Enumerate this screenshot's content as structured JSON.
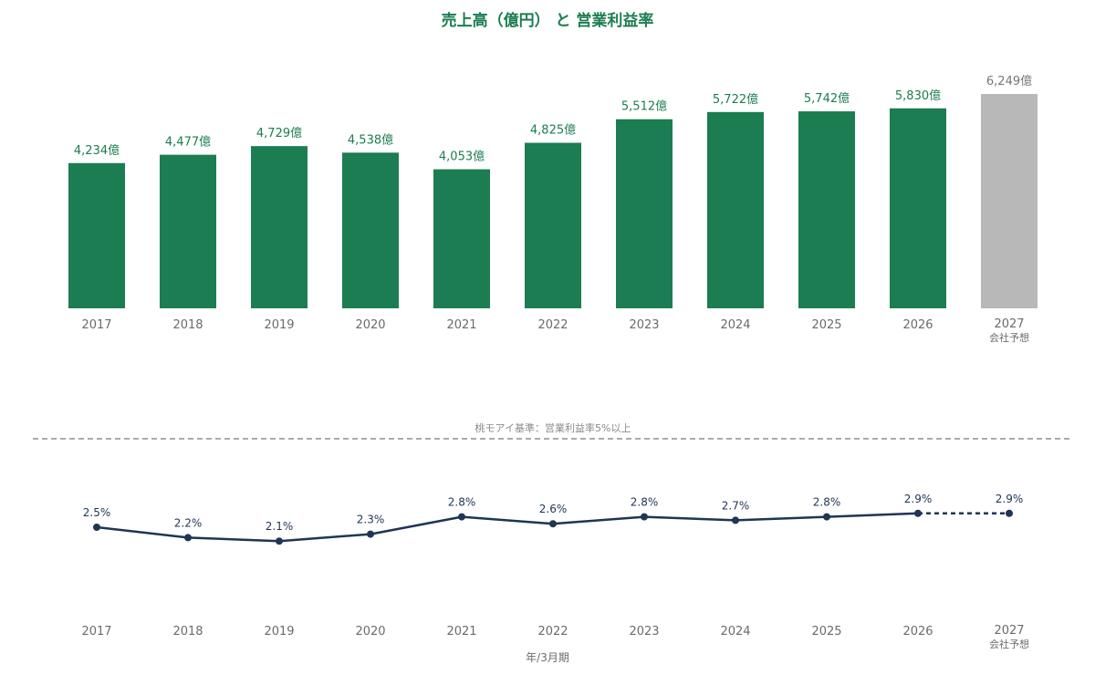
{
  "chart_data": [
    {
      "type": "bar",
      "title": "売上高（億円） と 営業利益率",
      "categories": [
        "2017",
        "2018",
        "2019",
        "2020",
        "2021",
        "2022",
        "2023",
        "2024",
        "2025",
        "2026",
        "2027"
      ],
      "category_sublabels": [
        "",
        "",
        "",
        "",
        "",
        "",
        "",
        "",
        "",
        "",
        "会社予想"
      ],
      "values": [
        4234,
        4477,
        4729,
        4538,
        4053,
        4825,
        5512,
        5722,
        5742,
        5830,
        6249
      ],
      "value_labels": [
        "4,234億",
        "4,477億",
        "4,729億",
        "4,538億",
        "4,053億",
        "4,825億",
        "5,512億",
        "5,722億",
        "5,742億",
        "5,830億",
        "6,249億"
      ],
      "forecast_index": 10,
      "colors": {
        "actual": "#1b7d51",
        "forecast": "#b8b8b8",
        "label_actual": "#1b7d51",
        "label_forecast": "#777777"
      }
    },
    {
      "type": "line",
      "categories": [
        "2017",
        "2018",
        "2019",
        "2020",
        "2021",
        "2022",
        "2023",
        "2024",
        "2025",
        "2026",
        "2027"
      ],
      "category_sublabels": [
        "",
        "",
        "",
        "",
        "",
        "",
        "",
        "",
        "",
        "",
        "会社予想"
      ],
      "values": [
        2.5,
        2.2,
        2.1,
        2.3,
        2.8,
        2.6,
        2.8,
        2.7,
        2.8,
        2.9,
        2.9
      ],
      "value_labels": [
        "2.5%",
        "2.2%",
        "2.1%",
        "2.3%",
        "2.8%",
        "2.6%",
        "2.8%",
        "2.7%",
        "2.8%",
        "2.9%",
        "2.9%"
      ],
      "forecast_index": 10,
      "reference_line": {
        "value": 5,
        "label": "桃モアイ基準：営業利益率5%以上"
      },
      "xlabel": "年/3月期",
      "colors": {
        "line": "#1f3554",
        "reference": "#8f8f8f"
      }
    }
  ]
}
